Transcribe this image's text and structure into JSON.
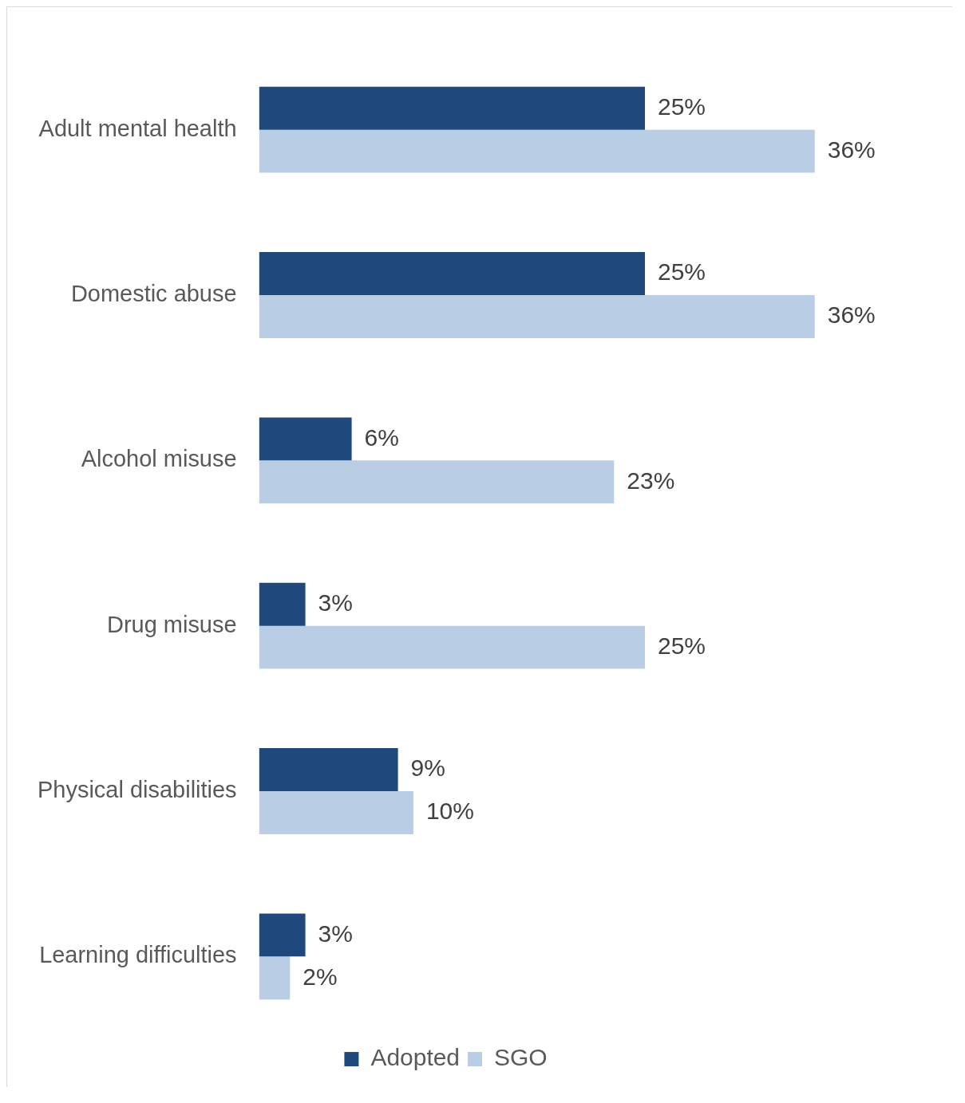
{
  "chart_data": {
    "type": "bar",
    "orientation": "horizontal",
    "categories": [
      "Adult mental health",
      "Domestic abuse",
      "Alcohol misuse",
      "Drug misuse",
      "Physical disabilities",
      "Learning difficulties"
    ],
    "series": [
      {
        "name": "Adopted",
        "color": "#1f497d",
        "values": [
          25,
          25,
          6,
          3,
          9,
          3
        ],
        "value_labels": [
          "25%",
          "25%",
          "6%",
          "3%",
          "9%",
          "3%"
        ]
      },
      {
        "name": "SGO",
        "color": "#b9cde5",
        "values": [
          36,
          36,
          23,
          25,
          10,
          2
        ],
        "value_labels": [
          "36%",
          "36%",
          "23%",
          "25%",
          "10%",
          "2%"
        ]
      }
    ],
    "tick_labels": "y",
    "grid": false,
    "legend": "bottom"
  }
}
